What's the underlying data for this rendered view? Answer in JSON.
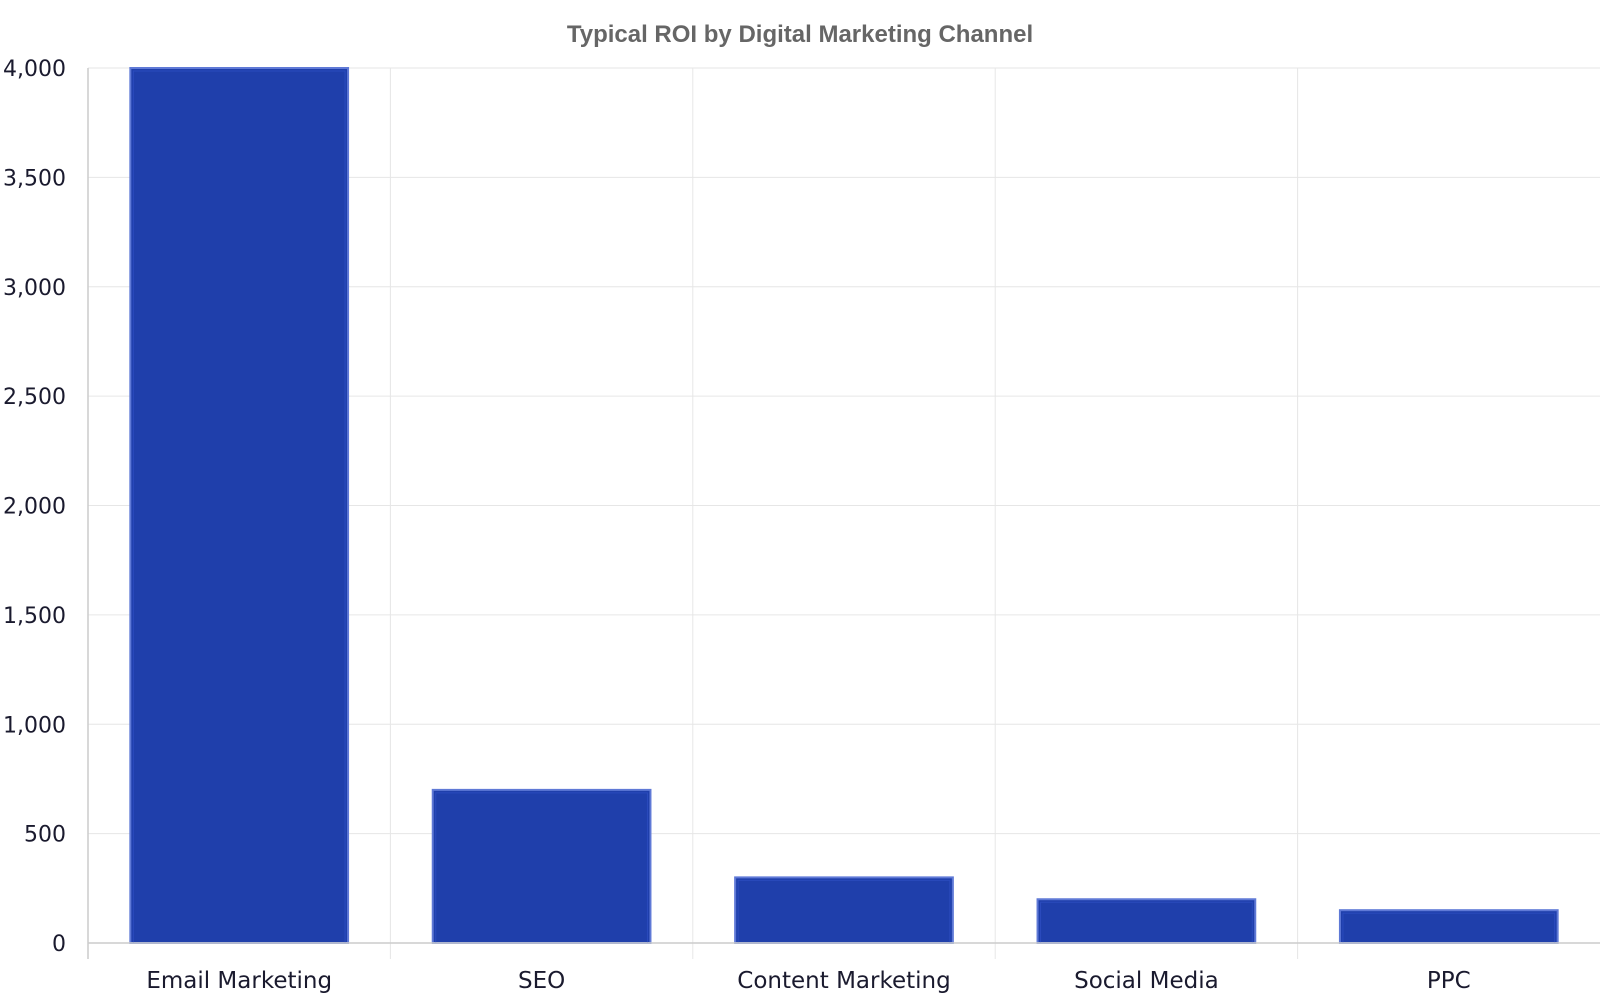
{
  "chart_data": {
    "type": "bar",
    "title": "Typical ROI by Digital Marketing Channel",
    "xlabel": "",
    "ylabel": "",
    "categories": [
      "Email Marketing",
      "SEO",
      "Content Marketing",
      "Social Media",
      "PPC"
    ],
    "values": [
      4000,
      700,
      300,
      200,
      150
    ],
    "ylim": [
      0,
      4000
    ],
    "yticks": [
      0,
      500,
      1000,
      1500,
      2000,
      2500,
      3000,
      3500,
      4000
    ],
    "ytick_labels": [
      "0",
      "500",
      "1,000",
      "1,500",
      "2,000",
      "2,500",
      "3,000",
      "3,500",
      "4,000"
    ],
    "grid": true,
    "legend": "none",
    "colors": {
      "bar_fill": "#1f3fab",
      "bar_stroke": "#5f79d6",
      "grid": "#e6e6e6",
      "axis": "#cccccc"
    }
  }
}
